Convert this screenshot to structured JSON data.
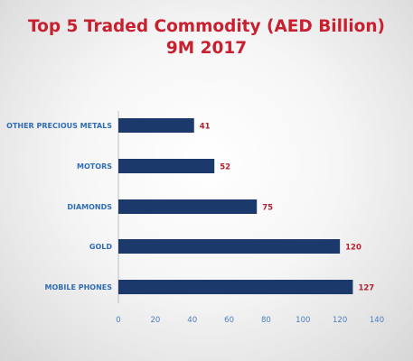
{
  "title": {
    "line1": "Top 5 Traded Commodity (AED Billion)",
    "line2": "9M 2017"
  },
  "colors": {
    "title": "#c8202f",
    "bar": "#1b3a6b",
    "category_label": "#2f6db5",
    "value_label": "#b5202e",
    "tick_label": "#4a7dbf",
    "axis": "#999999"
  },
  "chart_data": {
    "type": "bar",
    "orientation": "horizontal",
    "title": "Top 5 Traded Commodity (AED Billion) 9M 2017",
    "categories": [
      "OTHER PRECIOUS METALS",
      "MOTORS",
      "DIAMONDS",
      "GOLD",
      "MOBILE PHONES"
    ],
    "values": [
      41,
      52,
      75,
      120,
      127
    ],
    "value_labels": [
      "41",
      "52",
      "75",
      "120",
      "127"
    ],
    "xlim": [
      0,
      140
    ],
    "x_ticks": [
      0,
      20,
      40,
      60,
      80,
      100,
      120,
      140
    ],
    "x_tick_labels": [
      "0",
      "20",
      "40",
      "60",
      "80",
      "100",
      "120",
      "140"
    ],
    "grid": false,
    "legend": "none"
  }
}
